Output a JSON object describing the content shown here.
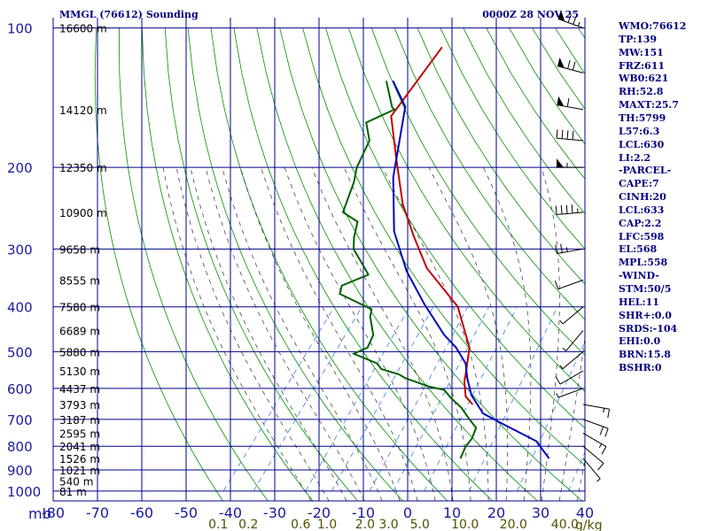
{
  "chart_data": {
    "type": "line",
    "title": "MMGL (76612) Sounding",
    "datetime": "0000Z 28 NOV 25",
    "pressure_levels": [
      100,
      200,
      300,
      400,
      500,
      600,
      700,
      800,
      900,
      1000
    ],
    "height_labels": [
      {
        "p": 100,
        "label": "16600 m"
      },
      {
        "p": 150,
        "label": "14120 m"
      },
      {
        "p": 200,
        "label": "12350 m"
      },
      {
        "p": 250,
        "label": "10900 m"
      },
      {
        "p": 300,
        "label": "9658 m"
      },
      {
        "p": 350,
        "label": "8555 m"
      },
      {
        "p": 400,
        "label": "7580 m"
      },
      {
        "p": 450,
        "label": "6689 m"
      },
      {
        "p": 500,
        "label": "5880 m"
      },
      {
        "p": 550,
        "label": "5130 m"
      },
      {
        "p": 600,
        "label": "4437 m"
      },
      {
        "p": 650,
        "label": "3793 m"
      },
      {
        "p": 700,
        "label": "3187 m"
      },
      {
        "p": 750,
        "label": "2595 m"
      },
      {
        "p": 800,
        "label": "2041 m"
      },
      {
        "p": 850,
        "label": "1526 m"
      },
      {
        "p": 900,
        "label": "1021 m"
      },
      {
        "p": 950,
        "label": "540 m"
      },
      {
        "p": 1000,
        "label": "81 m"
      }
    ],
    "y_unit_label": "mb",
    "xlim": [
      -80,
      40
    ],
    "x_ticks": [
      -80,
      -70,
      -60,
      -50,
      -40,
      -30,
      -20,
      -10,
      0,
      10,
      20,
      30,
      40
    ],
    "mixing_ratio_labels": [
      "0.1",
      "0.2",
      "0.6",
      "1.0",
      "2.0",
      "3.0",
      "5.0",
      "10.0",
      "20.0",
      "40.0"
    ],
    "mixing_ratio_unit": "g/kg",
    "series": [
      {
        "name": "Temperature",
        "color": "#c00000",
        "points": [
          [
            -72.5,
            110
          ],
          [
            -71.5,
            155
          ],
          [
            -63,
            190
          ],
          [
            -53,
            240
          ],
          [
            -45,
            280
          ],
          [
            -36,
            330
          ],
          [
            -22,
            400
          ],
          [
            -12,
            490
          ],
          [
            -8,
            560
          ],
          [
            -7,
            580
          ],
          [
            -4,
            625
          ],
          [
            -1,
            650
          ]
        ]
      },
      {
        "name": "Dewpoint",
        "color": "#006000",
        "points": [
          [
            -79,
            130
          ],
          [
            -73,
            148
          ],
          [
            -72,
            150
          ],
          [
            -76,
            160
          ],
          [
            -72,
            175
          ],
          [
            -70,
            200
          ],
          [
            -68,
            215
          ],
          [
            -65,
            250
          ],
          [
            -60,
            262
          ],
          [
            -58,
            283
          ],
          [
            -56,
            300
          ],
          [
            -50,
            330
          ],
          [
            -48,
            341
          ],
          [
            -52,
            360
          ],
          [
            -51,
            375
          ],
          [
            -41,
            405
          ],
          [
            -40,
            420
          ],
          [
            -36,
            460
          ],
          [
            -35,
            490
          ],
          [
            -37,
            505
          ],
          [
            -30,
            530
          ],
          [
            -28,
            545
          ],
          [
            -23,
            560
          ],
          [
            -21,
            570
          ],
          [
            -14,
            595
          ],
          [
            -10,
            605
          ],
          [
            -7,
            630
          ],
          [
            -3,
            660
          ],
          [
            1,
            700
          ],
          [
            4,
            730
          ],
          [
            5,
            770
          ],
          [
            5,
            800
          ],
          [
            6,
            850
          ]
        ]
      },
      {
        "name": "Parcel",
        "color": "#0000c0",
        "points": [
          [
            -77.5,
            130
          ],
          [
            -70,
            148
          ],
          [
            -60,
            210
          ],
          [
            -50,
            275
          ],
          [
            -40,
            335
          ],
          [
            -30,
            395
          ],
          [
            -20,
            460
          ],
          [
            -15,
            490
          ],
          [
            -10,
            530
          ],
          [
            -7,
            570
          ],
          [
            -3,
            620
          ],
          [
            3,
            680
          ],
          [
            10,
            720
          ],
          [
            20,
            780
          ],
          [
            26,
            850
          ]
        ]
      }
    ],
    "wind_barbs": [
      {
        "p": 100,
        "dir": 290,
        "kt": 75
      },
      {
        "p": 125,
        "dir": 285,
        "kt": 70
      },
      {
        "p": 150,
        "dir": 280,
        "kt": 60
      },
      {
        "p": 175,
        "dir": 275,
        "kt": 40
      },
      {
        "p": 200,
        "dir": 270,
        "kt": 55
      },
      {
        "p": 250,
        "dir": 265,
        "kt": 45
      },
      {
        "p": 300,
        "dir": 260,
        "kt": 25
      },
      {
        "p": 350,
        "dir": 250,
        "kt": 10
      },
      {
        "p": 400,
        "dir": 230,
        "kt": 5
      },
      {
        "p": 450,
        "dir": 220,
        "kt": 5
      },
      {
        "p": 500,
        "dir": 230,
        "kt": 5
      },
      {
        "p": 550,
        "dir": 240,
        "kt": 10
      },
      {
        "p": 600,
        "dir": 250,
        "kt": 5
      },
      {
        "p": 650,
        "dir": 100,
        "kt": 15
      },
      {
        "p": 700,
        "dir": 110,
        "kt": 20
      },
      {
        "p": 750,
        "dir": 120,
        "kt": 15
      },
      {
        "p": 800,
        "dir": 130,
        "kt": 10
      },
      {
        "p": 850,
        "dir": 140,
        "kt": 5
      }
    ],
    "stats": [
      "WMO:76612",
      "TP:139",
      "MW:151",
      "FRZ:611",
      "WB0:621",
      "RH:52.8",
      "MAXT:25.7",
      "TH:5799",
      "L57:6.3",
      "LCL:630",
      "LI:2.2",
      "-PARCEL-",
      "CAPE:7",
      "CINH:20",
      "LCL:633",
      "CAP:2.2",
      "LFC:598",
      "EL:568",
      "MPL:558",
      "-WIND-",
      "STM:50/5",
      "HEL:11",
      "SHR+:0.0",
      "SRDS:-104",
      "EHI:0.0",
      "BRN:15.8",
      "BSHR:0"
    ],
    "colors": {
      "grid": "#00008c",
      "dry_adiabat": "#009000",
      "moist_adiabat": "#303030",
      "mixing_ratio": "#3a7fe0",
      "tick_label": "#1a1aa0",
      "mr_label": "#505000",
      "stats_text": "#000080"
    }
  }
}
